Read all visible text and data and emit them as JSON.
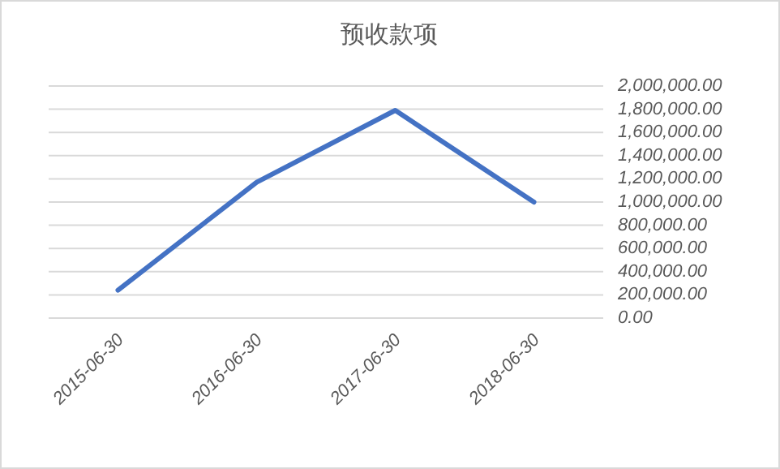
{
  "chart_data": {
    "type": "line",
    "title": "预收款项",
    "categories": [
      "2015-06-30",
      "2016-06-30",
      "2017-06-30",
      "2018-06-30"
    ],
    "series": [
      {
        "color": "#4472c4",
        "values": [
          240000,
          1170000,
          1790000,
          1000000
        ]
      }
    ],
    "ylim": [
      0,
      2000000
    ],
    "yticks": [
      {
        "value": 0,
        "label": "0.00"
      },
      {
        "value": 200000,
        "label": "200,000.00"
      },
      {
        "value": 400000,
        "label": "400,000.00"
      },
      {
        "value": 600000,
        "label": "600,000.00"
      },
      {
        "value": 800000,
        "label": "800,000.00"
      },
      {
        "value": 1000000,
        "label": "1,000,000.00"
      },
      {
        "value": 1200000,
        "label": "1,200,000.00"
      },
      {
        "value": 1400000,
        "label": "1,400,000.00"
      },
      {
        "value": 1600000,
        "label": "1,600,000.00"
      },
      {
        "value": 1800000,
        "label": "1,800,000.00"
      },
      {
        "value": 2000000,
        "label": "2,000,000.00"
      }
    ],
    "grid": "y",
    "marker": "none",
    "line_style": "solid"
  }
}
